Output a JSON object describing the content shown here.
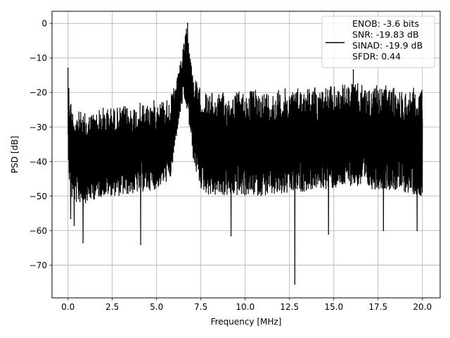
{
  "chart_data": {
    "type": "line",
    "xlabel": "Frequency [MHz]",
    "ylabel": "PSD [dB]",
    "xlim": [
      -0.9,
      21.0
    ],
    "ylim": [
      -79.5,
      3.5
    ],
    "xticks": [
      0.0,
      2.5,
      5.0,
      7.5,
      10.0,
      12.5,
      15.0,
      17.5,
      20.0
    ],
    "xtick_labels": [
      "0.0",
      "2.5",
      "5.0",
      "7.5",
      "10.0",
      "12.5",
      "15.0",
      "17.5",
      "20.0"
    ],
    "yticks": [
      0,
      -10,
      -20,
      -30,
      -40,
      -50,
      -60,
      -70
    ],
    "ytick_labels": [
      "0",
      "−10",
      "−20",
      "−30",
      "−40",
      "−50",
      "−60",
      "−70"
    ],
    "grid": true,
    "legend_position": "top-right",
    "series": [
      {
        "color": "#000000",
        "legend_lines": [
          "ENOB: -3.6 bits",
          "SNR: -19.83 dB",
          "SINAD: -19.9 dB",
          "SFDR: 0.44"
        ],
        "envelope": {
          "x": [
            0.0,
            0.1,
            0.3,
            0.5,
            1.0,
            2.0,
            3.0,
            4.0,
            5.0,
            5.8,
            6.2,
            6.5,
            6.7,
            6.9,
            7.1,
            7.5,
            8.0,
            9.0,
            10.0,
            11.0,
            12.0,
            13.0,
            14.0,
            15.0,
            16.0,
            17.0,
            18.0,
            19.0,
            20.0
          ],
          "upper": [
            -13,
            -20,
            -25,
            -25,
            -26,
            -24,
            -24,
            -23,
            -22,
            -21,
            -15,
            -7,
            0,
            -8,
            -15,
            -19,
            -20,
            -20,
            -19,
            -19,
            -19,
            -18,
            -18,
            -18,
            -17,
            -18,
            -18,
            -19,
            -18
          ],
          "lower": [
            -36,
            -50,
            -52,
            -52,
            -52,
            -50,
            -50,
            -49,
            -48,
            -45,
            -30,
            -22,
            -25,
            -32,
            -41,
            -48,
            -50,
            -50,
            -50,
            -50,
            -50,
            -49,
            -48,
            -48,
            -47,
            -48,
            -48,
            -49,
            -50
          ]
        },
        "notable_points": [
          {
            "x": 0.0,
            "y": -13
          },
          {
            "x": 0.15,
            "y": -56.5
          },
          {
            "x": 0.35,
            "y": -58.5
          },
          {
            "x": 0.85,
            "y": -63.5
          },
          {
            "x": 4.1,
            "y": -64
          },
          {
            "x": 9.2,
            "y": -61.5
          },
          {
            "x": 12.8,
            "y": -75.5
          },
          {
            "x": 14.7,
            "y": -61
          },
          {
            "x": 17.8,
            "y": -60
          },
          {
            "x": 19.7,
            "y": -60
          },
          {
            "x": 16.1,
            "y": -13.5
          },
          {
            "x": 6.75,
            "y": 0
          }
        ]
      }
    ]
  }
}
